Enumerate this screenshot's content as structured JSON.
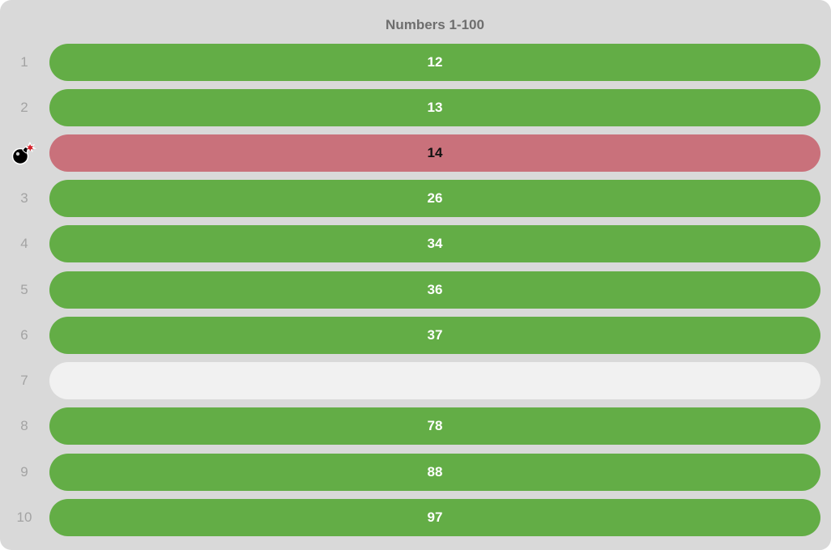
{
  "title": "Numbers 1-100",
  "colors": {
    "panel_background": "#d9d9d9",
    "filled_slot": "#63ad46",
    "empty_slot": "#f1f1f1",
    "bomb_slot": "#c9717b"
  },
  "rows": [
    {
      "label": "1",
      "value": "12",
      "state": "filled"
    },
    {
      "label": "2",
      "value": "13",
      "state": "filled"
    },
    {
      "label": "",
      "value": "14",
      "state": "bomb",
      "icon": "bomb-icon"
    },
    {
      "label": "3",
      "value": "26",
      "state": "filled"
    },
    {
      "label": "4",
      "value": "34",
      "state": "filled"
    },
    {
      "label": "5",
      "value": "36",
      "state": "filled"
    },
    {
      "label": "6",
      "value": "37",
      "state": "filled"
    },
    {
      "label": "7",
      "value": "",
      "state": "empty"
    },
    {
      "label": "8",
      "value": "78",
      "state": "filled"
    },
    {
      "label": "9",
      "value": "88",
      "state": "filled"
    },
    {
      "label": "10",
      "value": "97",
      "state": "filled"
    }
  ]
}
